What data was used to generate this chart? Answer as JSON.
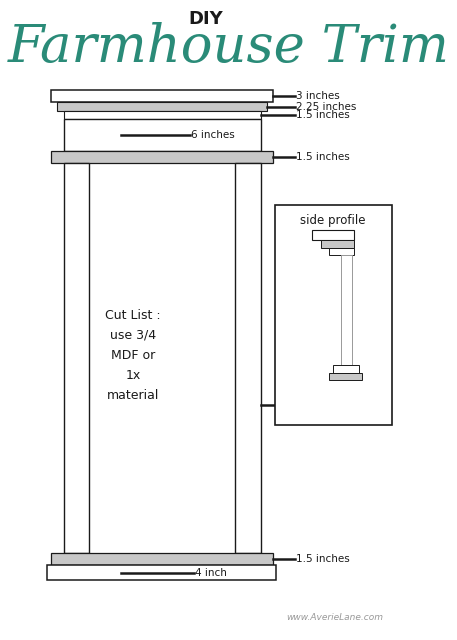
{
  "title_diy": "DIY",
  "title_farmhouse": "Farmhouse Trim",
  "teal_color": "#2a8b78",
  "black": "#1a1a1a",
  "gray": "#999999",
  "light_gray": "#c8c8c8",
  "bg_color": "#ffffff",
  "website": "www.AverieLane.com",
  "cut_list_text": "Cut List :\nuse 3/4\nMDF or\n1x\nmaterial",
  "annotations": {
    "3_inches": "3 inches",
    "2_25_inches": "2.25 inches",
    "1_5_inches_top": "1.5 inches",
    "6_inches": "6 inches",
    "1_5_inches_cap": "1.5 inches",
    "4_inches": "4 inches",
    "1_5_inches_bot": "1.5 inches",
    "4_inch": "4 inch",
    "side_profile": "side profile"
  }
}
